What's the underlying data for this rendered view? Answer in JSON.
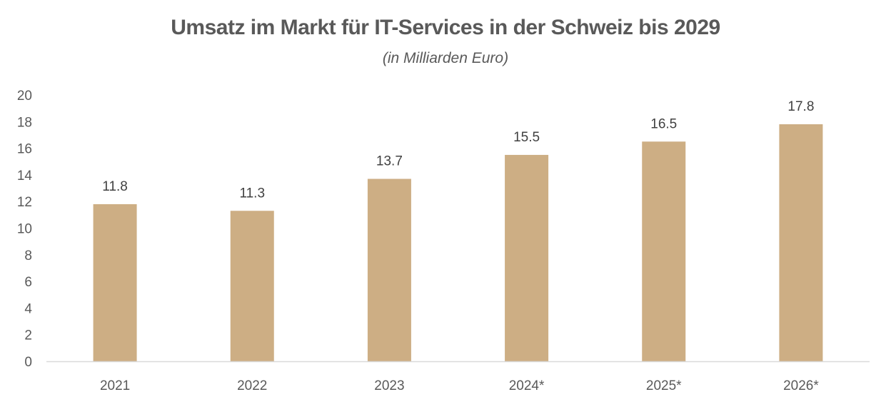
{
  "chart_data": {
    "type": "bar",
    "title": "Umsatz im Markt für IT-Services in der Schweiz bis 2029",
    "subtitle": "(in Milliarden Euro)",
    "xlabel": "",
    "ylabel": "",
    "categories": [
      "2021",
      "2022",
      "2023",
      "2024*",
      "2025*",
      "2026*"
    ],
    "values": [
      11.8,
      11.3,
      13.7,
      15.5,
      16.5,
      17.8
    ],
    "data_labels": [
      "11.8",
      "11.3",
      "13.7",
      "15.5",
      "16.5",
      "17.8"
    ],
    "ylim": [
      0,
      20
    ],
    "yticks": [
      0,
      2,
      4,
      6,
      8,
      10,
      12,
      14,
      16,
      18,
      20
    ],
    "ytick_labels": [
      "0",
      "2",
      "4",
      "6",
      "8",
      "10",
      "12",
      "14",
      "16",
      "18",
      "20"
    ],
    "grid": false,
    "legend": "none",
    "colors": {
      "bar": "#CDAE84",
      "axis": "#D9D9D9",
      "text": "#595959"
    }
  }
}
